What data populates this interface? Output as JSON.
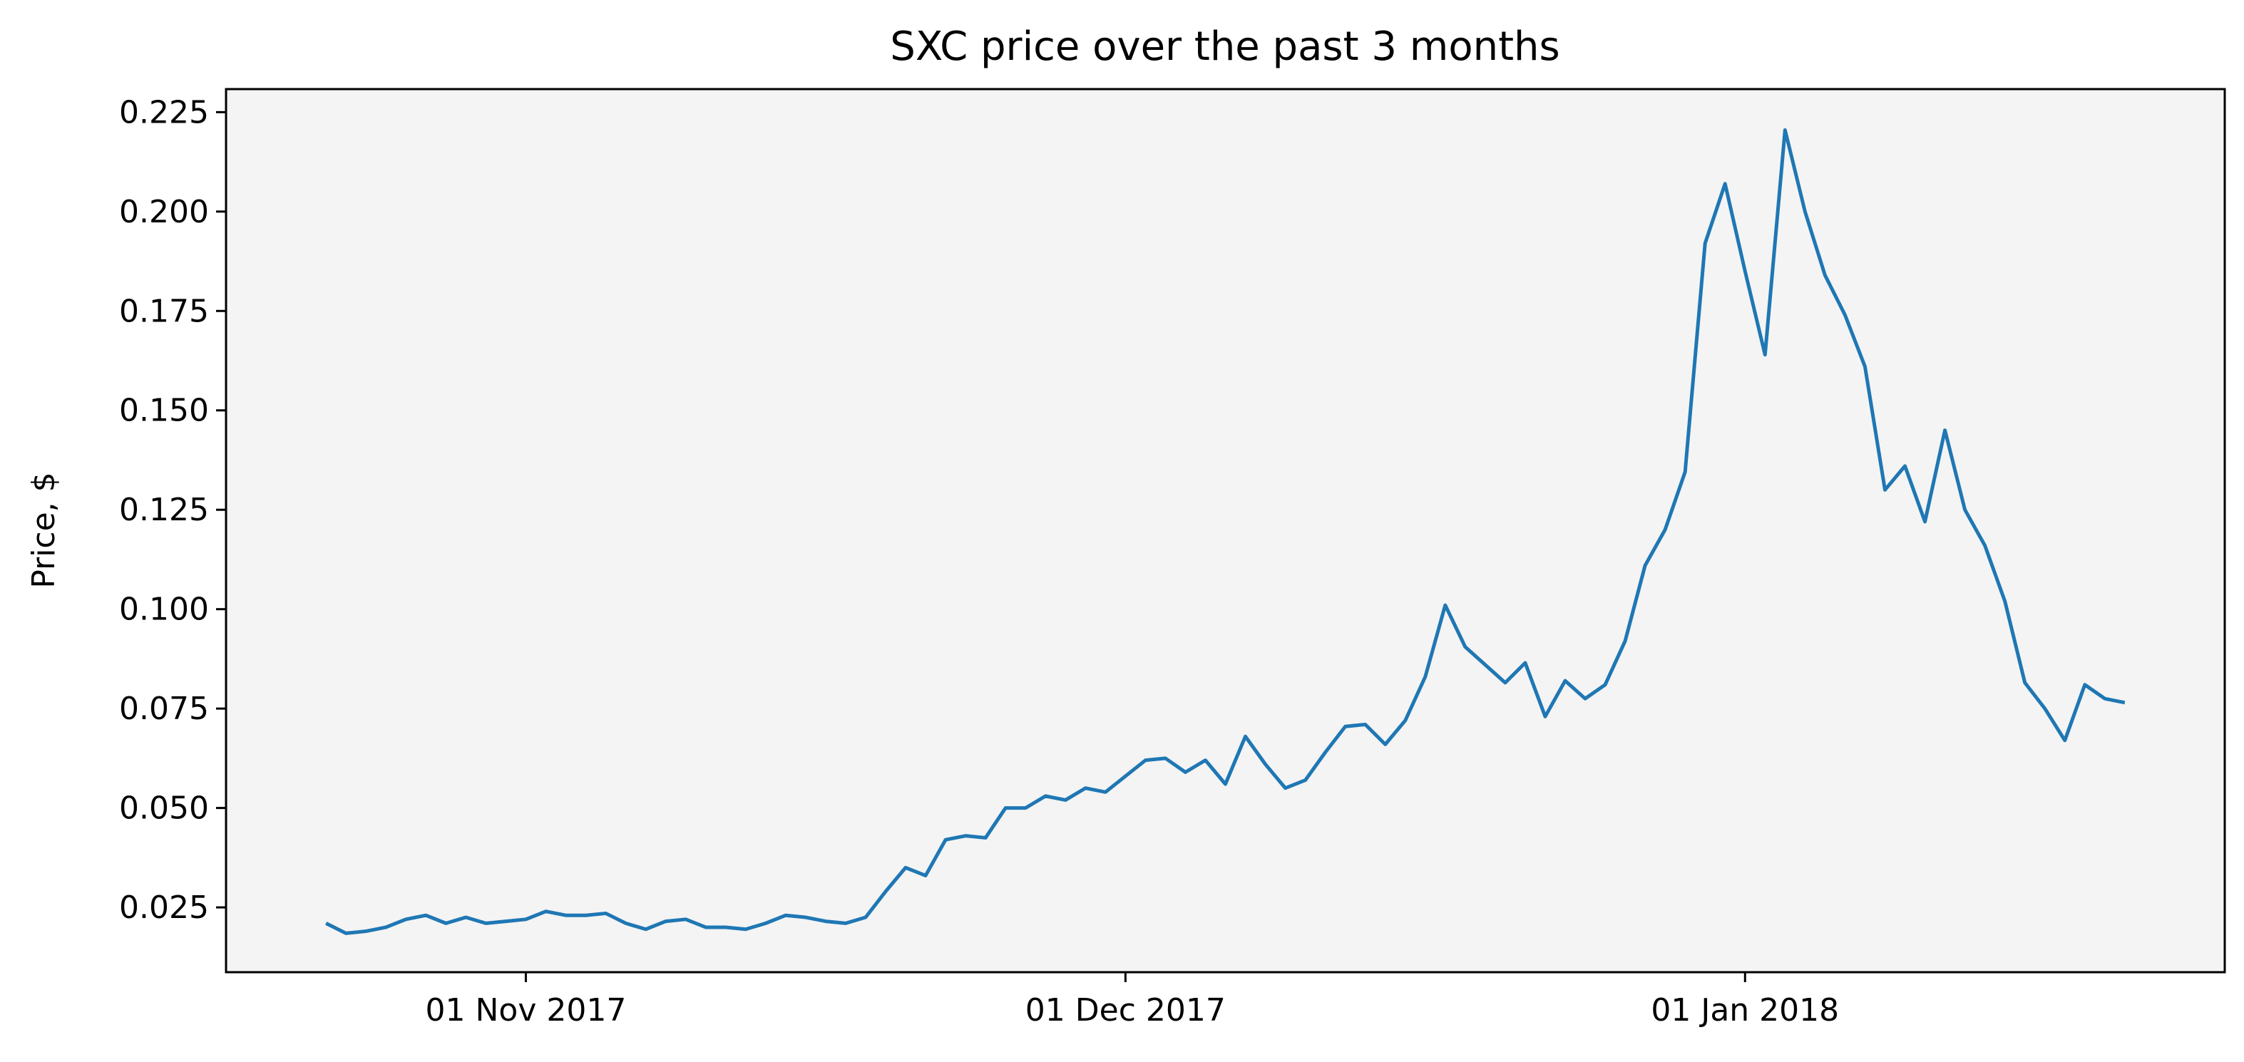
{
  "chart_data": {
    "type": "line",
    "title": "SXC price over the past 3 months",
    "y_label": "Price, $",
    "x": [
      "2017-10-22",
      "2017-10-23",
      "2017-10-24",
      "2017-10-25",
      "2017-10-26",
      "2017-10-27",
      "2017-10-28",
      "2017-10-29",
      "2017-10-30",
      "2017-10-31",
      "2017-11-01",
      "2017-11-02",
      "2017-11-03",
      "2017-11-04",
      "2017-11-05",
      "2017-11-06",
      "2017-11-07",
      "2017-11-08",
      "2017-11-09",
      "2017-11-10",
      "2017-11-11",
      "2017-11-12",
      "2017-11-13",
      "2017-11-14",
      "2017-11-15",
      "2017-11-16",
      "2017-11-17",
      "2017-11-18",
      "2017-11-19",
      "2017-11-20",
      "2017-11-21",
      "2017-11-22",
      "2017-11-23",
      "2017-11-24",
      "2017-11-25",
      "2017-11-26",
      "2017-11-27",
      "2017-11-28",
      "2017-11-29",
      "2017-11-30",
      "2017-12-01",
      "2017-12-02",
      "2017-12-03",
      "2017-12-04",
      "2017-12-05",
      "2017-12-06",
      "2017-12-07",
      "2017-12-08",
      "2017-12-09",
      "2017-12-10",
      "2017-12-11",
      "2017-12-12",
      "2017-12-13",
      "2017-12-14",
      "2017-12-15",
      "2017-12-16",
      "2017-12-17",
      "2017-12-18",
      "2017-12-19",
      "2017-12-20",
      "2017-12-21",
      "2017-12-22",
      "2017-12-23",
      "2017-12-24",
      "2017-12-25",
      "2017-12-26",
      "2017-12-27",
      "2017-12-28",
      "2017-12-29",
      "2017-12-30",
      "2017-12-31",
      "2018-01-01",
      "2018-01-02",
      "2018-01-03",
      "2018-01-04",
      "2018-01-05",
      "2018-01-06",
      "2018-01-07",
      "2018-01-08",
      "2018-01-09",
      "2018-01-10",
      "2018-01-11",
      "2018-01-12",
      "2018-01-13",
      "2018-01-14",
      "2018-01-15",
      "2018-01-16",
      "2018-01-17",
      "2018-01-18",
      "2018-01-19",
      "2018-01-20"
    ],
    "series": [
      {
        "name": "SXC",
        "color": "#1f77b4",
        "values": [
          0.021,
          0.0185,
          0.019,
          0.02,
          0.022,
          0.023,
          0.021,
          0.0225,
          0.021,
          0.0215,
          0.022,
          0.024,
          0.023,
          0.023,
          0.0235,
          0.021,
          0.0195,
          0.0215,
          0.022,
          0.02,
          0.02,
          0.0195,
          0.021,
          0.023,
          0.0225,
          0.0215,
          0.021,
          0.0225,
          0.029,
          0.035,
          0.033,
          0.042,
          0.043,
          0.0425,
          0.05,
          0.05,
          0.053,
          0.052,
          0.055,
          0.054,
          0.058,
          0.062,
          0.0625,
          0.059,
          0.062,
          0.056,
          0.068,
          0.061,
          0.055,
          0.057,
          0.064,
          0.0705,
          0.071,
          0.066,
          0.072,
          0.083,
          0.101,
          0.0905,
          0.086,
          0.0815,
          0.0865,
          0.073,
          0.082,
          0.0775,
          0.081,
          0.092,
          0.111,
          0.12,
          0.1345,
          0.192,
          0.207,
          0.185,
          0.164,
          0.2205,
          0.2,
          0.184,
          0.174,
          0.161,
          0.13,
          0.136,
          0.122,
          0.145,
          0.125,
          0.116,
          0.102,
          0.0815,
          0.075,
          0.067,
          0.081,
          0.0775,
          0.0765
        ]
      }
    ],
    "xlim": [
      "2017-10-17",
      "2018-01-25"
    ],
    "xticks": [
      {
        "value": "2017-11-01",
        "label": "01 Nov 2017"
      },
      {
        "value": "2017-12-01",
        "label": "01 Dec 2017"
      },
      {
        "value": "2018-01-01",
        "label": "01 Jan 2018"
      }
    ],
    "ylim": [
      0.0087,
      0.2308
    ],
    "yticks": [
      0.025,
      {
        "value": 0.05,
        "label": "0.050"
      },
      0.075,
      {
        "value": 0.1,
        "label": "0.100"
      },
      0.125,
      {
        "value": 0.15,
        "label": "0.150"
      },
      0.175,
      {
        "value": 0.2,
        "label": "0.200"
      },
      0.225
    ],
    "plot_background": "#f4f4f4"
  }
}
